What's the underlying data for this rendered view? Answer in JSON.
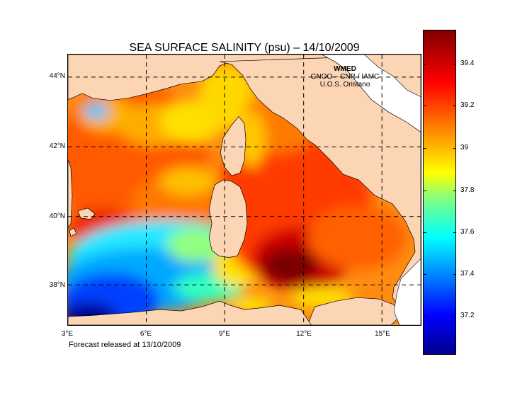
{
  "title": "SEA SURFACE SALINITY (psu)   –  14/10/2009",
  "credits": {
    "line1": "WMED",
    "line2": "GNOO – CNR / IAMC",
    "line3": "U.O.S. Oristano"
  },
  "forecast_text": "Forecast released at  13/10/2009",
  "latitude_labels": [
    "44°N",
    "42°N",
    "40°N",
    "38°N"
  ],
  "longitude_labels": [
    "3°E",
    "6°E",
    "9°E",
    "12°E",
    "15°E"
  ],
  "colorbar": {
    "ticks": [
      "39.4",
      "39.2",
      "39",
      "37.8",
      "37.6",
      "37.4",
      "37.2"
    ],
    "colormap": "jet",
    "low_color": "#00008f",
    "high_color": "#800000"
  },
  "colors": {
    "land": "#fcd5b5",
    "coastline": "#000000",
    "background": "#ffffff"
  }
}
